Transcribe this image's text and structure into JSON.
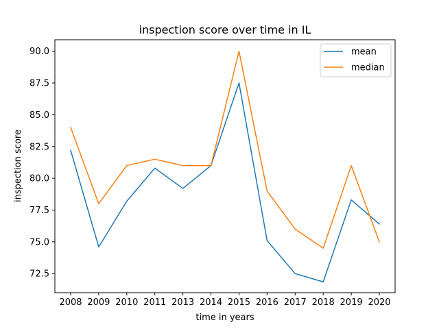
{
  "chart_data": {
    "type": "line",
    "title": "inspection score over time in IL",
    "xlabel": "time in years",
    "ylabel": "inspection score",
    "categories": [
      "2008",
      "2009",
      "2010",
      "2011",
      "2013",
      "2014",
      "2015",
      "2016",
      "2017",
      "2018",
      "2019",
      "2020"
    ],
    "series": [
      {
        "name": "mean",
        "color": "#1f77b4",
        "values": [
          82.2,
          74.6,
          78.2,
          80.8,
          79.2,
          81.0,
          87.5,
          75.1,
          72.5,
          71.85,
          78.3,
          76.4
        ]
      },
      {
        "name": "median",
        "color": "#ff7f0e",
        "values": [
          84.0,
          78.0,
          81.0,
          81.5,
          81.0,
          81.0,
          90.0,
          79.0,
          76.0,
          74.5,
          81.0,
          75.0
        ]
      }
    ],
    "ylim": [
      71.0,
      90.9
    ],
    "yticks": [
      "72.5",
      "75.0",
      "77.5",
      "80.0",
      "82.5",
      "85.0",
      "87.5",
      "90.0"
    ],
    "legend_position": "top-right",
    "grid": false
  }
}
